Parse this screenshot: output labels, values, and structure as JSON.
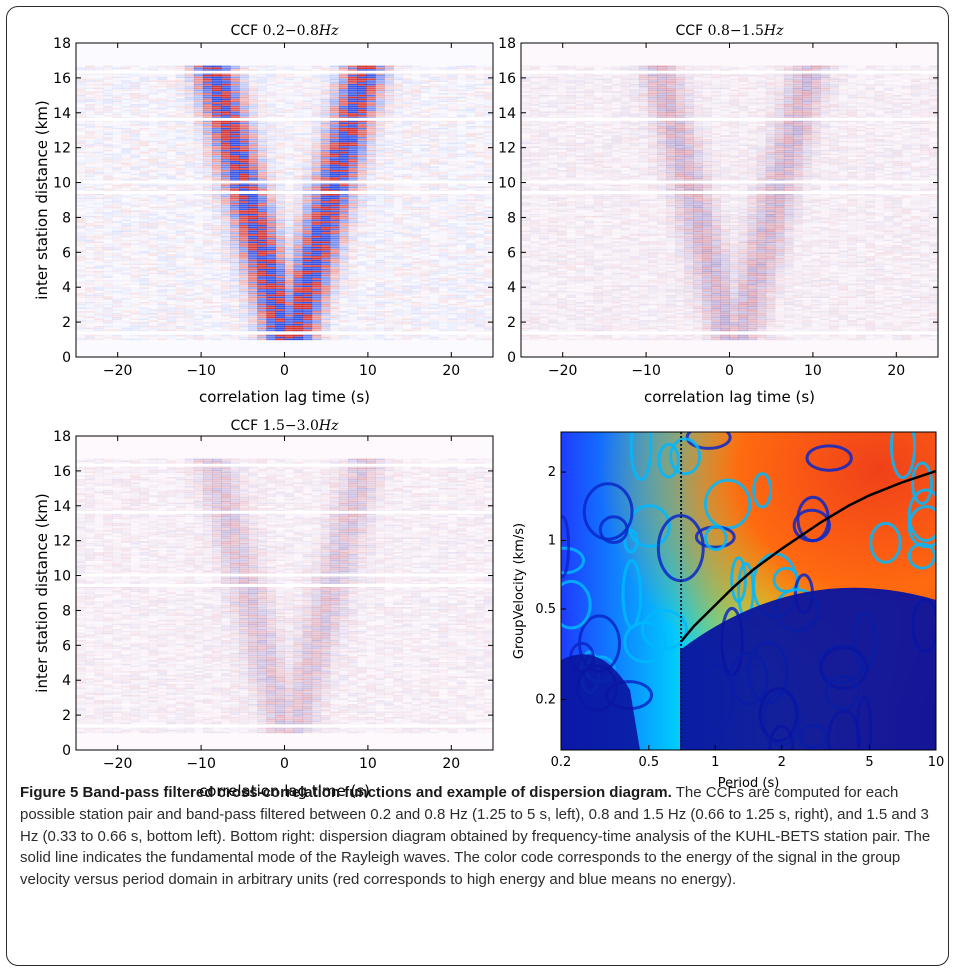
{
  "chart_data": [
    {
      "type": "heatmap",
      "title": "CCF 0.2−0.8Hz",
      "title_prefix": "CCF",
      "title_band": "0.2−0.8",
      "title_unit": "Hz",
      "xlabel": "correlation lag time (s)",
      "ylabel": "inter station distance (km)",
      "xlim": [
        -25,
        25
      ],
      "ylim": [
        0,
        18
      ],
      "xticks": [
        -20,
        -10,
        0,
        10,
        20
      ],
      "yticks": [
        0,
        2,
        4,
        6,
        8,
        10,
        12,
        14,
        16,
        18
      ],
      "colormap": "blue-white-red",
      "grid": false
    },
    {
      "type": "heatmap",
      "title": "CCF 0.8−1.5Hz",
      "title_prefix": "CCF",
      "title_band": "0.8−1.5",
      "title_unit": "Hz",
      "xlabel": "correlation lag time (s)",
      "ylabel": "",
      "xlim": [
        -25,
        25
      ],
      "ylim": [
        0,
        18
      ],
      "xticks": [
        -20,
        -10,
        0,
        10,
        20
      ],
      "yticks": [
        0,
        2,
        4,
        6,
        8,
        10,
        12,
        14,
        16,
        18
      ],
      "colormap": "blue-white-red",
      "grid": false
    },
    {
      "type": "heatmap",
      "title": "CCF 1.5−3.0Hz",
      "title_prefix": "CCF",
      "title_band": "1.5−3.0",
      "title_unit": "Hz",
      "xlabel": "correlation lag time (s)",
      "ylabel": "inter station distance (km)",
      "xlim": [
        -25,
        25
      ],
      "ylim": [
        0,
        18
      ],
      "xticks": [
        -20,
        -10,
        0,
        10,
        20
      ],
      "yticks": [
        0,
        2,
        4,
        6,
        8,
        10,
        12,
        14,
        16,
        18
      ],
      "colormap": "blue-white-red",
      "grid": false
    },
    {
      "type": "heatmap",
      "title": "",
      "xlabel": "Period (s)",
      "ylabel": "GroupVelocity (km/s)",
      "xscale": "log",
      "yscale": "log",
      "xlim": [
        0.2,
        10
      ],
      "ylim": [
        0.12,
        3.0
      ],
      "xticks": [
        0.2,
        0.5,
        1,
        2,
        5,
        10
      ],
      "xtick_labels": [
        "0.2",
        "0.5",
        "1",
        "2",
        "5",
        "10"
      ],
      "yticks": [
        0.2,
        0.5,
        1,
        2
      ],
      "ytick_labels": [
        "0.2",
        "0.5",
        "1",
        "2"
      ],
      "colormap": "jet",
      "vertical_dotted_line_period": 0.7,
      "fundamental_mode_curve": {
        "x": [
          0.7,
          0.8,
          1.0,
          1.2,
          1.5,
          2.0,
          3.0,
          4.0,
          5.0,
          7.0,
          10.0
        ],
        "y": [
          0.36,
          0.42,
          0.52,
          0.62,
          0.75,
          0.92,
          1.2,
          1.42,
          1.58,
          1.8,
          2.02
        ]
      }
    }
  ],
  "caption": {
    "label": "Figure 5 Band-pass filtered cross-correlation functions and example of dispersion diagram.",
    "text": "The CCFs are computed for each possible station pair and band-pass filtered between 0.2 and 0.8 Hz (1.25 to 5 s, left), 0.8 and 1.5 Hz (0.66 to 1.25 s, right), and 1.5 and 3 Hz (0.33 to 0.66 s, bottom left). Bottom right: dispersion diagram obtained by frequency-time analysis of the KUHL-BETS station pair. The solid line indicates the fundamental mode of the Rayleigh waves. The color code corresponds to the energy of the signal in the group velocity versus period domain in arbitrary units (red corresponds to high energy and blue means no energy)."
  }
}
